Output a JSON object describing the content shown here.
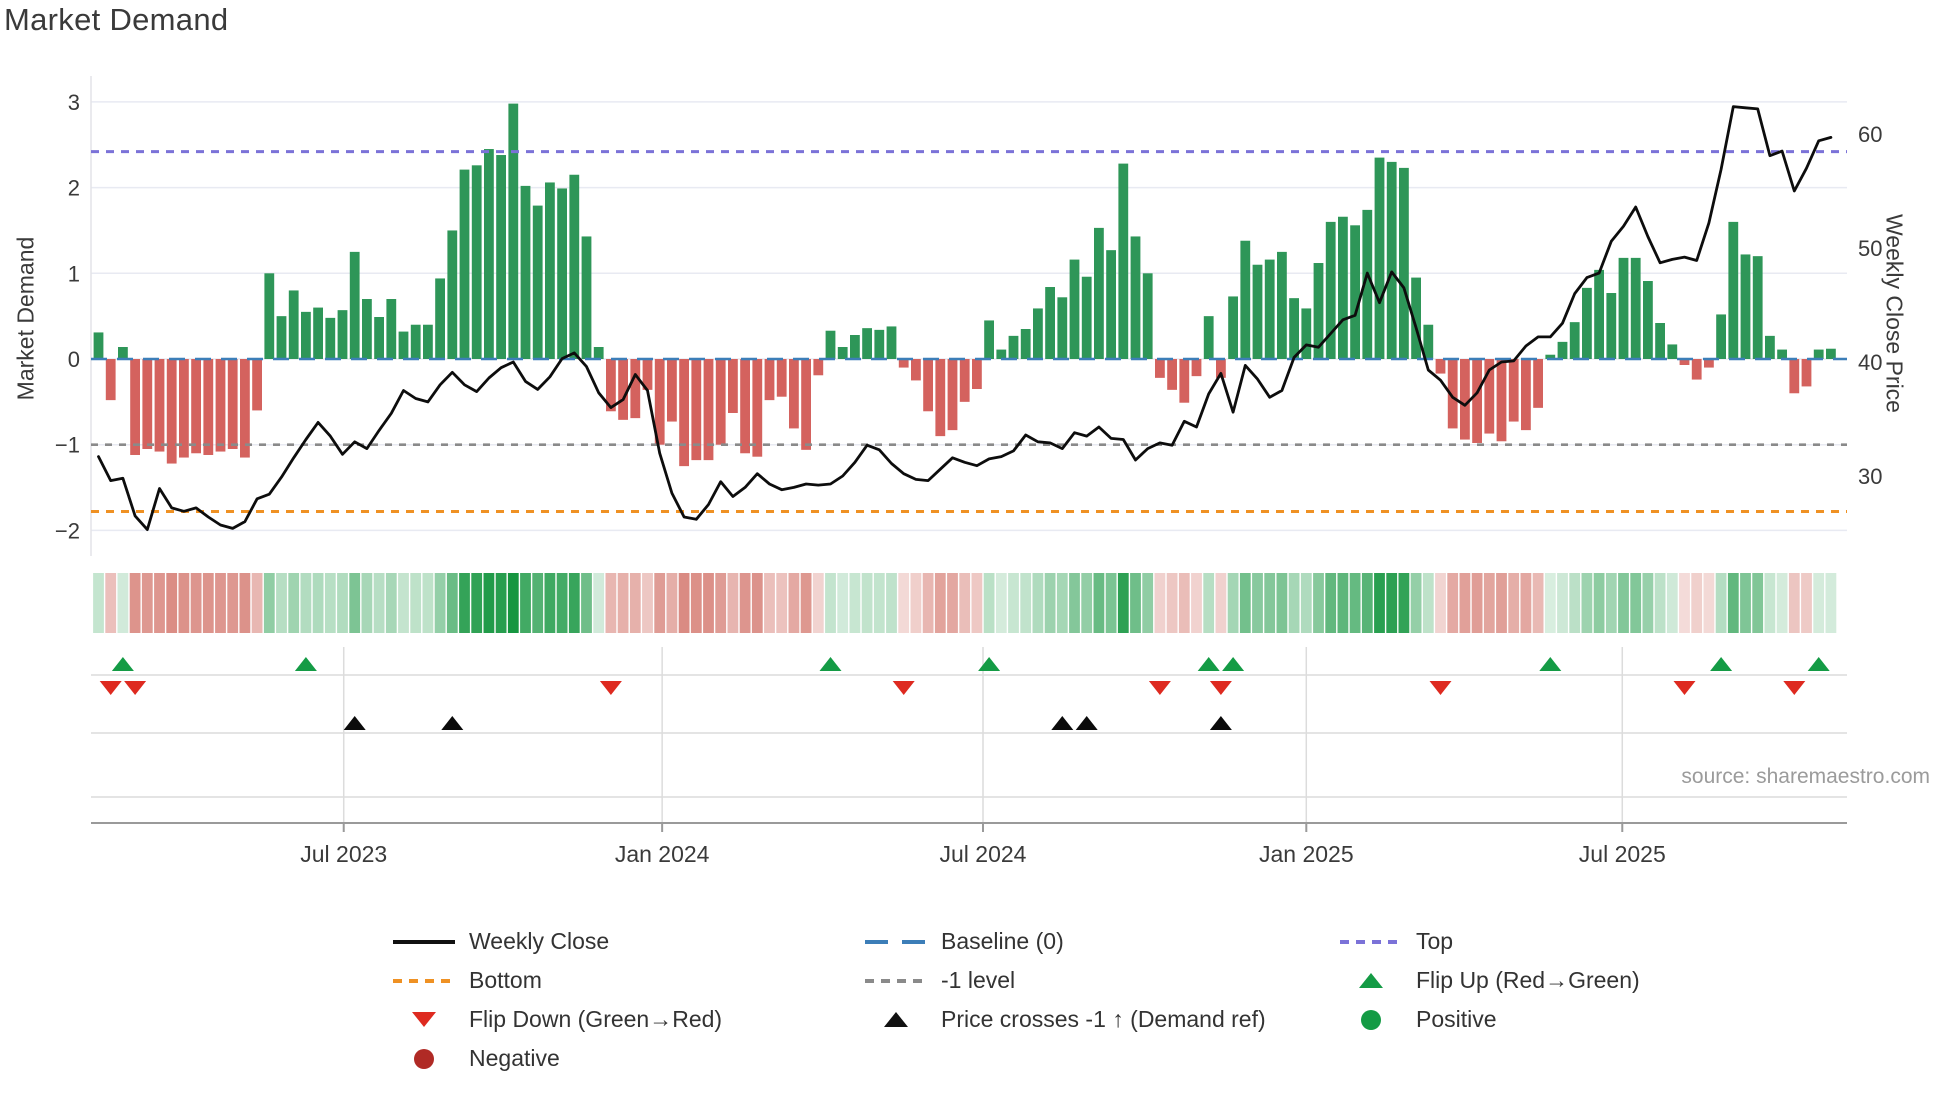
{
  "title": "Market Demand",
  "source": "source: sharemaestro.com",
  "colors": {
    "bar_positive": "#2e9658",
    "bar_negative": "#d4625e",
    "price_line": "#0d0d0d",
    "baseline": "#3c7eb8",
    "top_line": "#7b72d8",
    "bottom_line": "#ef9123",
    "minus_one_line": "#8a8a8a",
    "flip_up": "#149b45",
    "flip_down": "#de2a20",
    "positive_dot": "#149b45",
    "negative_dot": "#b02a25",
    "heat_green": "#169640",
    "heat_red": "#c0392b",
    "grid": "#e8eaf2",
    "panel_grid": "#dcdcdc",
    "axis_spine": "#9a9a9a",
    "tick_text": "#3a3a3a"
  },
  "axes": {
    "left_label": "Market Demand",
    "right_label": "Weekly Close Price",
    "demand_ticks": [
      {
        "v": 3,
        "label": "3"
      },
      {
        "v": 2,
        "label": "2"
      },
      {
        "v": 1,
        "label": "1"
      },
      {
        "v": 0,
        "label": "0"
      },
      {
        "v": -1,
        "label": "−1"
      },
      {
        "v": -2,
        "label": "−2"
      }
    ],
    "price_ticks": [
      {
        "v": 60,
        "label": "60"
      },
      {
        "v": 50,
        "label": "50"
      },
      {
        "v": 40,
        "label": "40"
      },
      {
        "v": 30,
        "label": "30"
      }
    ],
    "x_ticks": [
      {
        "label": "Jul 2023",
        "week": 20.1
      },
      {
        "label": "Jan 2024",
        "week": 46.2
      },
      {
        "label": "Jul 2024",
        "week": 72.5
      },
      {
        "label": "Jan 2025",
        "week": 99.0
      },
      {
        "label": "Jul 2025",
        "week": 124.9
      }
    ]
  },
  "chart_data": {
    "type": "bar+line combo with heatmap and signal markers",
    "weeks": 143,
    "ylim_demand": [
      -2.3,
      3.3
    ],
    "ylim_price": [
      23.0,
      65.1
    ],
    "reference_lines": {
      "baseline": 0,
      "top": 2.42,
      "bottom": -1.78,
      "minus_one": -1
    },
    "series": [
      {
        "name": "Market Demand",
        "type": "bar",
        "axis": "left",
        "values": [
          0.31,
          -0.48,
          0.14,
          -1.12,
          -1.05,
          -1.08,
          -1.22,
          -1.15,
          -1.1,
          -1.12,
          -1.08,
          -1.05,
          -1.15,
          -0.6,
          1.0,
          0.5,
          0.8,
          0.55,
          0.6,
          0.48,
          0.57,
          1.25,
          0.7,
          0.49,
          0.7,
          0.32,
          0.4,
          0.4,
          0.94,
          1.5,
          2.21,
          2.26,
          2.45,
          2.38,
          2.98,
          2.02,
          1.79,
          2.06,
          1.99,
          2.15,
          1.43,
          0.14,
          -0.61,
          -0.71,
          -0.69,
          -0.36,
          -1.0,
          -0.73,
          -1.25,
          -1.18,
          -1.18,
          -1.0,
          -0.63,
          -1.1,
          -1.14,
          -0.48,
          -0.44,
          -0.81,
          -1.06,
          -0.19,
          0.33,
          0.14,
          0.28,
          0.36,
          0.34,
          0.38,
          -0.1,
          -0.25,
          -0.61,
          -0.9,
          -0.83,
          -0.5,
          -0.35,
          0.45,
          0.11,
          0.27,
          0.35,
          0.59,
          0.84,
          0.72,
          1.16,
          0.96,
          1.53,
          1.27,
          2.28,
          1.43,
          1.0,
          -0.22,
          -0.36,
          -0.51,
          -0.2,
          0.5,
          -0.22,
          0.73,
          1.38,
          1.1,
          1.16,
          1.25,
          0.71,
          0.59,
          1.12,
          1.6,
          1.66,
          1.56,
          1.74,
          2.35,
          2.3,
          2.23,
          0.95,
          0.4,
          -0.17,
          -0.81,
          -0.94,
          -0.98,
          -0.87,
          -0.96,
          -0.73,
          -0.83,
          -0.57,
          0.05,
          0.2,
          0.43,
          0.83,
          1.04,
          0.77,
          1.18,
          1.18,
          0.91,
          0.42,
          0.17,
          -0.07,
          -0.24,
          -0.1,
          0.52,
          1.6,
          1.22,
          1.2,
          0.27,
          0.11,
          -0.4,
          -0.32,
          0.11,
          0.12
        ]
      },
      {
        "name": "Weekly Close",
        "type": "line",
        "axis": "right",
        "values": [
          31.7,
          29.6,
          29.8,
          26.5,
          25.3,
          28.9,
          27.2,
          26.9,
          27.2,
          26.4,
          25.7,
          25.4,
          26.0,
          28.0,
          28.4,
          29.9,
          31.6,
          33.2,
          34.7,
          33.5,
          31.9,
          33.0,
          32.4,
          34.0,
          35.5,
          37.5,
          36.8,
          36.5,
          38.0,
          39.1,
          38.0,
          37.4,
          38.6,
          39.5,
          40.0,
          38.3,
          37.6,
          38.7,
          40.3,
          40.8,
          39.6,
          37.3,
          36.0,
          36.7,
          38.9,
          37.5,
          32.0,
          28.5,
          26.4,
          26.2,
          27.5,
          29.5,
          28.2,
          29.0,
          30.2,
          29.3,
          28.8,
          29.0,
          29.3,
          29.2,
          29.3,
          30.0,
          31.2,
          32.7,
          32.3,
          31.1,
          30.2,
          29.7,
          29.6,
          30.6,
          31.6,
          31.2,
          30.9,
          31.5,
          31.7,
          32.2,
          33.6,
          33.0,
          32.9,
          32.4,
          33.8,
          33.5,
          34.3,
          33.3,
          33.2,
          31.4,
          32.4,
          32.9,
          32.7,
          34.8,
          34.3,
          37.2,
          39.0,
          35.6,
          39.7,
          38.5,
          36.9,
          37.5,
          40.4,
          41.5,
          41.3,
          42.5,
          43.7,
          44.1,
          47.8,
          45.2,
          47.9,
          46.5,
          43.0,
          39.3,
          38.4,
          36.9,
          36.2,
          37.3,
          39.3,
          40.0,
          40.1,
          41.4,
          42.2,
          42.2,
          43.4,
          46.0,
          47.4,
          47.8,
          50.6,
          51.9,
          53.6,
          51.0,
          48.7,
          49.0,
          49.2,
          48.9,
          52.2,
          56.9,
          62.4,
          62.3,
          62.2,
          58.1,
          58.5,
          55.0,
          57.0,
          59.4,
          59.7
        ]
      }
    ],
    "markers": {
      "flip_up": [
        2,
        17,
        60,
        73,
        91,
        93,
        119,
        133,
        141
      ],
      "flip_down": [
        1,
        3,
        42,
        66,
        87,
        92,
        110,
        130,
        139
      ],
      "price_cross": [
        21,
        29,
        79,
        81,
        92
      ]
    }
  },
  "legend": {
    "columns": [
      {
        "items": [
          {
            "swatch": "line",
            "color": "#111111",
            "label": "Weekly Close"
          },
          {
            "swatch": "dotted",
            "color": "#ef9123",
            "label": "Bottom"
          },
          {
            "swatch": "triangle-down",
            "color": "#de2a20",
            "label": "Flip Down (Green→Red)"
          },
          {
            "swatch": "circle",
            "color": "#b02a25",
            "label": "Negative"
          }
        ]
      },
      {
        "items": [
          {
            "swatch": "dashed",
            "color": "#3c7eb8",
            "label": "Baseline (0)"
          },
          {
            "swatch": "dotted",
            "color": "#8a8a8a",
            "label": "-1 level"
          },
          {
            "swatch": "triangle-up",
            "color": "#111111",
            "label": "Price crosses -1 ↑ (Demand ref)"
          }
        ]
      },
      {
        "items": [
          {
            "swatch": "dotted",
            "color": "#7b72d8",
            "label": "Top"
          },
          {
            "swatch": "triangle-up",
            "color": "#149b45",
            "label": "Flip Up (Red→Green)"
          },
          {
            "swatch": "circle",
            "color": "#149b45",
            "label": "Positive"
          }
        ]
      }
    ]
  }
}
